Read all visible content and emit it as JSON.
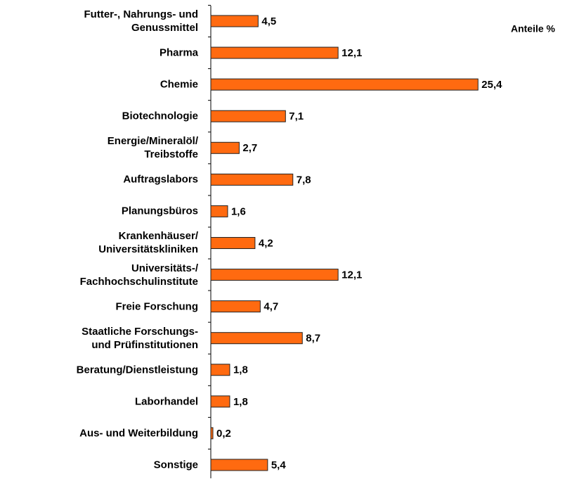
{
  "chart_data": {
    "type": "bar",
    "orientation": "horizontal",
    "annotation": "Anteile %",
    "categories": [
      "Futter-, Nahrungs- und\nGenussmittel",
      "Pharma",
      "Chemie",
      "Biotechnologie",
      "Energie/Mineralöl/\nTreibstoffe",
      "Auftragslabors",
      "Planungsbüros",
      "Krankenhäuser/\nUniversitätskliniken",
      "Universitäts-/\nFachhochschulinstitute",
      "Freie Forschung",
      "Staatliche Forschungs-\nund Prüfinstitutionen",
      "Beratung/Dienstleistung",
      "Laborhandel",
      "Aus- und Weiterbildung",
      "Sonstige"
    ],
    "values": [
      4.5,
      12.1,
      25.4,
      7.1,
      2.7,
      7.8,
      1.6,
      4.2,
      12.1,
      4.7,
      8.7,
      1.8,
      1.8,
      0.2,
      5.4
    ],
    "value_labels": [
      "4,5",
      "12,1",
      "25,4",
      "7,1",
      "2,7",
      "7,8",
      "1,6",
      "4,2",
      "12,1",
      "4,7",
      "8,7",
      "1,8",
      "1,8",
      "0,2",
      "5,4"
    ],
    "color": "#ff6a10",
    "xlim": [
      0,
      35
    ]
  }
}
